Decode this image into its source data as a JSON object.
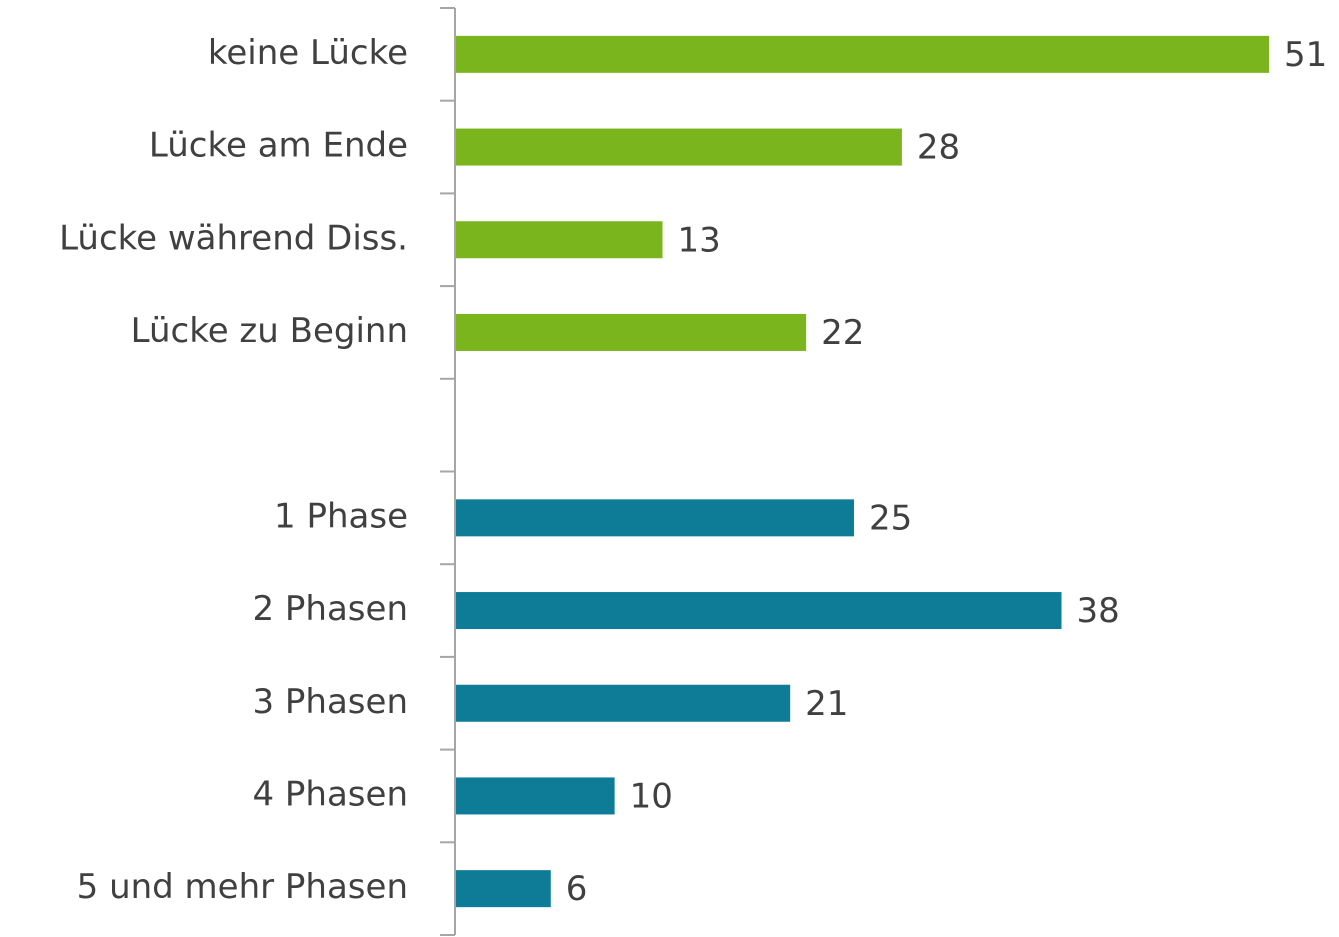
{
  "chart_data": {
    "type": "bar",
    "orientation": "horizontal",
    "categories": [
      "keine Lücke",
      "Lücke am Ende",
      "Lücke während Diss.",
      "Lücke zu Beginn",
      null,
      "1 Phase",
      "2 Phasen",
      "3 Phasen",
      "4 Phasen",
      "5 und mehr Phasen"
    ],
    "values": [
      51,
      28,
      13,
      22,
      null,
      25,
      38,
      21,
      10,
      6
    ],
    "colors": [
      "#7ab51d",
      "#7ab51d",
      "#7ab51d",
      "#7ab51d",
      null,
      "#0e7c96",
      "#0e7c96",
      "#0e7c96",
      "#0e7c96",
      "#0e7c96"
    ],
    "data_labels": true
  }
}
